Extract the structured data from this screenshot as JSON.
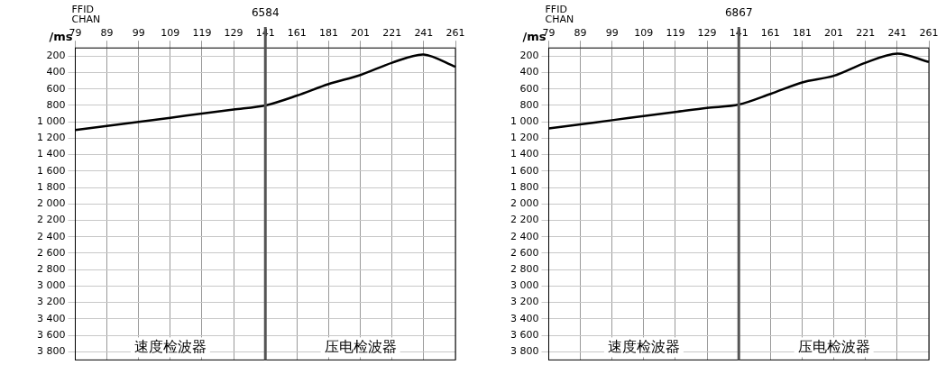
{
  "chart_data": [
    {
      "type": "line",
      "title": "6584",
      "header": [
        "FFID",
        "CHAN"
      ],
      "y_label": "/ms",
      "categories": [
        "79",
        "89",
        "99",
        "109",
        "119",
        "129",
        "141",
        "161",
        "181",
        "201",
        "221",
        "241",
        "261"
      ],
      "values": [
        1100,
        1050,
        1000,
        950,
        900,
        850,
        800,
        680,
        540,
        430,
        280,
        180,
        330
      ],
      "color": "#000000",
      "divider_at": "141",
      "annotations": [
        "速度检波器",
        "压电检波器"
      ],
      "ylim": [
        100,
        3900
      ],
      "yticks": [
        200,
        400,
        600,
        800,
        {
          "value": 1000,
          "label": "1 000"
        },
        {
          "value": 1200,
          "label": "1 200"
        },
        {
          "value": 1400,
          "label": "1 400"
        },
        {
          "value": 1600,
          "label": "1 600"
        },
        {
          "value": 1800,
          "label": "1 800"
        },
        {
          "value": 2000,
          "label": "2 000"
        },
        {
          "value": 2200,
          "label": "2 200"
        },
        {
          "value": 2400,
          "label": "2 400"
        },
        {
          "value": 2600,
          "label": "2 600"
        },
        {
          "value": 2800,
          "label": "2 800"
        },
        {
          "value": 3000,
          "label": "3 000"
        },
        {
          "value": 3200,
          "label": "3 200"
        },
        {
          "value": 3400,
          "label": "3 400"
        },
        {
          "value": 3600,
          "label": "3 600"
        },
        {
          "value": 3800,
          "label": "3 800"
        }
      ],
      "grid": true
    },
    {
      "type": "line",
      "title": "6867",
      "header": [
        "FFID",
        "CHAN"
      ],
      "y_label": "/ms",
      "categories": [
        "79",
        "89",
        "99",
        "109",
        "119",
        "129",
        "141",
        "161",
        "181",
        "201",
        "221",
        "241",
        "261"
      ],
      "values": [
        1080,
        1030,
        980,
        930,
        880,
        830,
        790,
        660,
        520,
        440,
        280,
        170,
        270
      ],
      "color": "#000000",
      "divider_at": "141",
      "annotations": [
        "速度检波器",
        "压电检波器"
      ],
      "ylim": [
        100,
        3900
      ],
      "yticks": [
        200,
        400,
        600,
        800,
        {
          "value": 1000,
          "label": "1 000"
        },
        {
          "value": 1200,
          "label": "1 200"
        },
        {
          "value": 1400,
          "label": "1 400"
        },
        {
          "value": 1600,
          "label": "1 600"
        },
        {
          "value": 1800,
          "label": "1 800"
        },
        {
          "value": 2000,
          "label": "2 000"
        },
        {
          "value": 2200,
          "label": "2 200"
        },
        {
          "value": 2400,
          "label": "2 400"
        },
        {
          "value": 2600,
          "label": "2 600"
        },
        {
          "value": 2800,
          "label": "2 800"
        },
        {
          "value": 3000,
          "label": "3 000"
        },
        {
          "value": 3200,
          "label": "3 200"
        },
        {
          "value": 3400,
          "label": "3 400"
        },
        {
          "value": 3600,
          "label": "3 600"
        },
        {
          "value": 3800,
          "label": "3 800"
        }
      ],
      "grid": true
    }
  ]
}
